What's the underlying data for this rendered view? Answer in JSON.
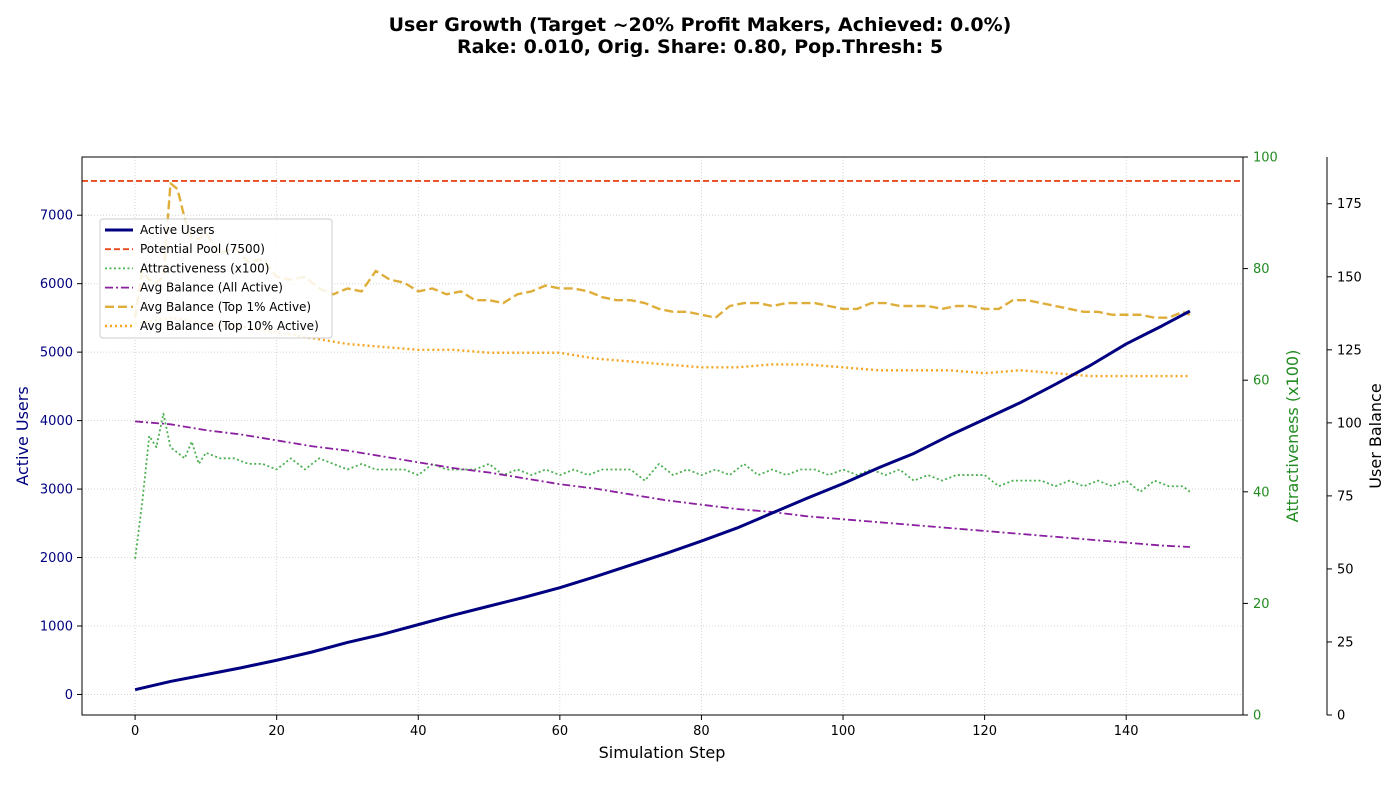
{
  "chart_data": {
    "type": "line",
    "title_line1": "User Growth (Target ~20% Profit Makers, Achieved: 0.0%)",
    "title_line2": "Rake: 0.010, Orig. Share: 0.80, Pop.Thresh: 5",
    "xlabel": "Simulation Step",
    "ylabel_left": "Active Users",
    "ylabel_mid": "Attractiveness (x100)",
    "ylabel_right": "User Balance",
    "xlim": [
      -7.5,
      156.5
    ],
    "ylim_left": [
      -300,
      7850
    ],
    "ylim_mid": [
      0,
      100
    ],
    "ylim_right": [
      0,
      191
    ],
    "x_ticks": [
      0,
      20,
      40,
      60,
      80,
      100,
      120,
      140
    ],
    "left_ticks": [
      0,
      1000,
      2000,
      3000,
      4000,
      5000,
      6000,
      7000
    ],
    "mid_ticks": [
      0,
      20,
      40,
      60,
      80,
      100
    ],
    "right_ticks": [
      0,
      25,
      50,
      75,
      100,
      125,
      150,
      175
    ],
    "grid": true,
    "legend_position": "upper-left",
    "colors": {
      "left_axis": "#000080",
      "mid_axis": "#228b22",
      "right_axis": "#000000",
      "active_users": "#000080",
      "pool": "#e8491d",
      "attractiveness": "#4caf50",
      "avg_all": "#8b1fa0",
      "avg_top1": "#dfae3a",
      "avg_top10": "#f5a623"
    },
    "series": [
      {
        "name": "Active Users",
        "axis": "left",
        "style": "solid",
        "x": [
          0,
          5,
          10,
          15,
          20,
          25,
          30,
          35,
          40,
          45,
          50,
          55,
          60,
          65,
          70,
          75,
          80,
          85,
          90,
          95,
          100,
          105,
          110,
          115,
          120,
          125,
          130,
          135,
          140,
          145,
          149
        ],
        "values": [
          70,
          190,
          290,
          390,
          500,
          620,
          760,
          880,
          1020,
          1160,
          1290,
          1420,
          1560,
          1720,
          1890,
          2060,
          2240,
          2430,
          2650,
          2870,
          3080,
          3310,
          3520,
          3780,
          4020,
          4260,
          4530,
          4810,
          5120,
          5380,
          5600
        ]
      },
      {
        "name": "Potential Pool (7500)",
        "axis": "left",
        "style": "dashed",
        "x": [
          -7.5,
          156.5
        ],
        "values": [
          7500,
          7500
        ]
      },
      {
        "name": "Attractiveness (x100)",
        "axis": "mid",
        "style": "dotted",
        "x": [
          0,
          1,
          2,
          3,
          4,
          5,
          6,
          7,
          8,
          9,
          10,
          12,
          14,
          16,
          18,
          20,
          22,
          24,
          26,
          28,
          30,
          32,
          34,
          36,
          38,
          40,
          42,
          44,
          46,
          48,
          50,
          52,
          54,
          56,
          58,
          60,
          62,
          64,
          66,
          68,
          70,
          72,
          74,
          76,
          78,
          80,
          82,
          84,
          86,
          88,
          90,
          92,
          94,
          96,
          98,
          100,
          102,
          104,
          106,
          108,
          110,
          112,
          114,
          116,
          118,
          120,
          122,
          124,
          126,
          128,
          130,
          132,
          134,
          136,
          138,
          140,
          142,
          144,
          146,
          148,
          149
        ],
        "values": [
          28,
          38,
          50,
          48,
          54,
          48,
          47,
          46,
          49,
          45,
          47,
          46,
          46,
          45,
          45,
          44,
          46,
          44,
          46,
          45,
          44,
          45,
          44,
          44,
          44,
          43,
          45,
          44,
          44,
          44,
          45,
          43,
          44,
          43,
          44,
          43,
          44,
          43,
          44,
          44,
          44,
          42,
          45,
          43,
          44,
          43,
          44,
          43,
          45,
          43,
          44,
          43,
          44,
          44,
          43,
          44,
          43,
          44,
          43,
          44,
          42,
          43,
          42,
          43,
          43,
          43,
          41,
          42,
          42,
          42,
          41,
          42,
          41,
          42,
          41,
          42,
          40,
          42,
          41,
          41,
          40
        ]
      },
      {
        "name": "Avg Balance (All Active)",
        "axis": "right",
        "style": "dashdot",
        "x": [
          0,
          5,
          10,
          15,
          20,
          25,
          30,
          35,
          40,
          45,
          50,
          55,
          60,
          65,
          70,
          75,
          80,
          85,
          90,
          95,
          100,
          105,
          110,
          115,
          120,
          125,
          130,
          135,
          140,
          145,
          149
        ],
        "values": [
          100.5,
          99.5,
          97.5,
          96,
          94,
          92,
          90.5,
          88.5,
          86.5,
          84.5,
          83,
          81,
          79,
          77.5,
          75.5,
          73.5,
          72,
          70.5,
          69.5,
          68,
          67,
          66,
          65,
          64,
          63,
          62,
          61,
          60,
          59,
          58,
          57.5
        ]
      },
      {
        "name": "Avg Balance (Top 1% Active)",
        "axis": "right",
        "style": "dashed",
        "x": [
          0,
          1,
          2,
          3,
          4,
          5,
          6,
          7,
          8,
          9,
          10,
          12,
          14,
          16,
          18,
          20,
          22,
          24,
          26,
          28,
          30,
          32,
          34,
          36,
          38,
          40,
          42,
          44,
          46,
          48,
          50,
          52,
          54,
          56,
          58,
          60,
          62,
          64,
          66,
          68,
          70,
          72,
          74,
          76,
          78,
          80,
          82,
          84,
          86,
          88,
          90,
          92,
          94,
          96,
          98,
          100,
          102,
          104,
          106,
          108,
          110,
          112,
          114,
          116,
          118,
          120,
          122,
          124,
          126,
          128,
          130,
          132,
          134,
          136,
          138,
          140,
          142,
          144,
          146,
          148,
          149
        ],
        "values": [
          136,
          152,
          149,
          148,
          150,
          182,
          180,
          170,
          163,
          163,
          165,
          158,
          160,
          155,
          156,
          150,
          149,
          150,
          146,
          144,
          146,
          145,
          152,
          149,
          148,
          145,
          146,
          144,
          145,
          142,
          142,
          141,
          144,
          145,
          147,
          146,
          146,
          145,
          143,
          142,
          142,
          141,
          139,
          138,
          138,
          137,
          136,
          140,
          141,
          141,
          140,
          141,
          141,
          141,
          140,
          139,
          139,
          141,
          141,
          140,
          140,
          140,
          139,
          140,
          140,
          139,
          139,
          142,
          142,
          141,
          140,
          139,
          138,
          138,
          137,
          137,
          137,
          136,
          136,
          138,
          137
        ]
      },
      {
        "name": "Avg Balance (Top 10% Active)",
        "axis": "right",
        "style": "dotted",
        "x": [
          0,
          5,
          10,
          15,
          20,
          25,
          30,
          35,
          40,
          45,
          50,
          55,
          60,
          65,
          70,
          75,
          80,
          85,
          90,
          95,
          100,
          105,
          110,
          115,
          120,
          125,
          130,
          135,
          140,
          145,
          149
        ],
        "values": [
          134,
          136,
          134,
          133,
          131,
          129,
          127,
          126,
          125,
          125,
          124,
          124,
          124,
          122,
          121,
          120,
          119,
          119,
          120,
          120,
          119,
          118,
          118,
          118,
          117,
          118,
          117,
          116,
          116,
          116,
          116
        ]
      }
    ]
  }
}
